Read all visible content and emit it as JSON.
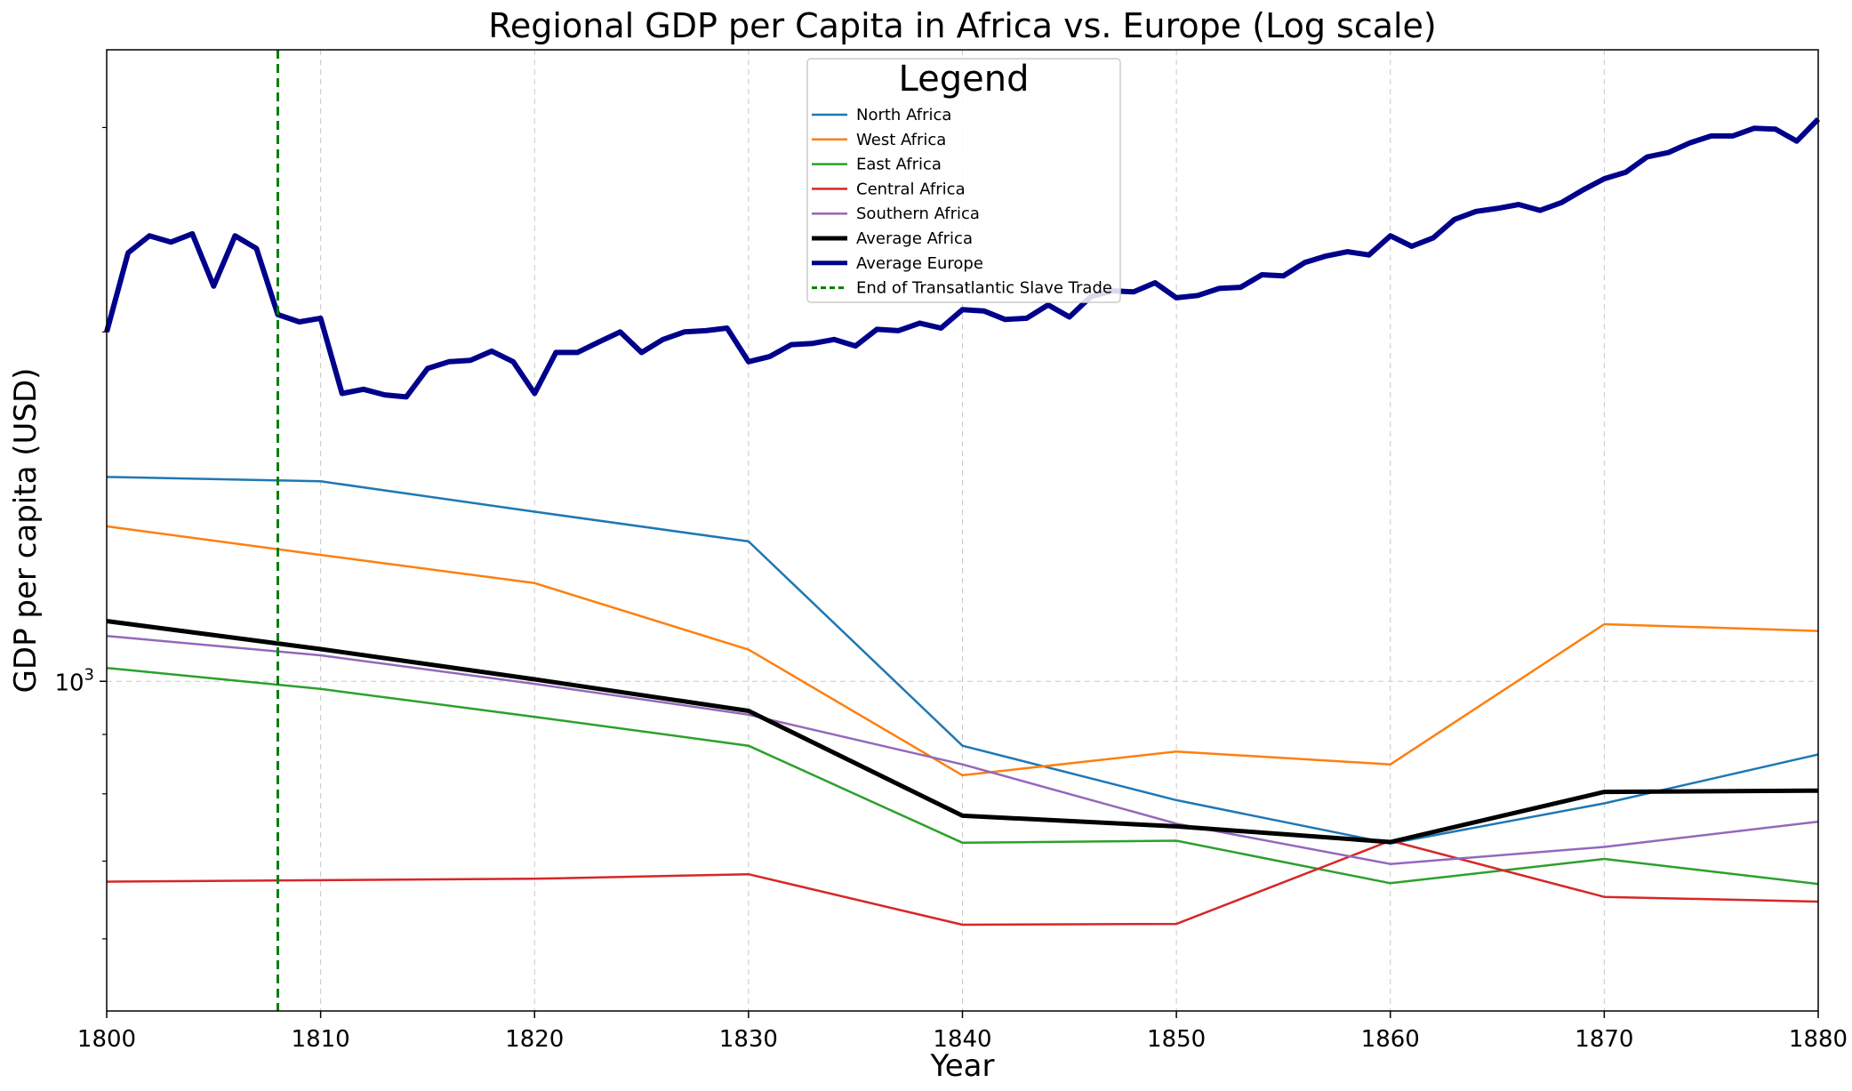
{
  "chart_data": {
    "type": "line",
    "title": "Regional GDP per Capita in Africa vs. Europe (Log scale)",
    "xlabel": "Year",
    "ylabel": "GDP per capita (USD)",
    "xlim": [
      1800,
      1880
    ],
    "ylim": [
      520,
      3500
    ],
    "yscale": "log",
    "x_ticks": [
      "1800",
      "1810",
      "1820",
      "1830",
      "1840",
      "1850",
      "1860",
      "1870",
      "1880"
    ],
    "y_tick_label": {
      "base": "10",
      "exponent": "3",
      "value": 1000
    },
    "grid": true,
    "legend": {
      "title": "Legend",
      "placement": "upper-center"
    },
    "series": [
      {
        "name": "North Africa",
        "color": "#1f77b4",
        "width": 2.5,
        "dash": false,
        "points": [
          [
            1800,
            1500
          ],
          [
            1810,
            1487
          ],
          [
            1820,
            1400
          ],
          [
            1830,
            1320
          ],
          [
            1840,
            880
          ],
          [
            1850,
            790
          ],
          [
            1860,
            725
          ],
          [
            1870,
            785
          ],
          [
            1880,
            865
          ]
        ]
      },
      {
        "name": "West Africa",
        "color": "#ff7f0e",
        "width": 2.5,
        "dash": false,
        "points": [
          [
            1800,
            1360
          ],
          [
            1810,
            1285
          ],
          [
            1820,
            1215
          ],
          [
            1830,
            1065
          ],
          [
            1840,
            830
          ],
          [
            1850,
            870
          ],
          [
            1860,
            848
          ],
          [
            1870,
            1120
          ],
          [
            1880,
            1105
          ]
        ]
      },
      {
        "name": "East Africa",
        "color": "#2ca02c",
        "width": 2.5,
        "dash": false,
        "points": [
          [
            1800,
            1027
          ],
          [
            1810,
            985
          ],
          [
            1820,
            932
          ],
          [
            1830,
            880
          ],
          [
            1840,
            726
          ],
          [
            1850,
            729
          ],
          [
            1860,
            670
          ],
          [
            1870,
            703
          ],
          [
            1880,
            669
          ]
        ]
      },
      {
        "name": "Central Africa",
        "color": "#d62728",
        "width": 2.5,
        "dash": false,
        "points": [
          [
            1800,
            672
          ],
          [
            1810,
            674
          ],
          [
            1820,
            676
          ],
          [
            1830,
            682
          ],
          [
            1840,
            617
          ],
          [
            1850,
            618
          ],
          [
            1860,
            729
          ],
          [
            1870,
            652
          ],
          [
            1880,
            646
          ]
        ]
      },
      {
        "name": "Southern Africa",
        "color": "#9467bd",
        "width": 2.5,
        "dash": false,
        "points": [
          [
            1800,
            1094
          ],
          [
            1810,
            1053
          ],
          [
            1820,
            995
          ],
          [
            1830,
            936
          ],
          [
            1840,
            848
          ],
          [
            1850,
            754
          ],
          [
            1860,
            696
          ],
          [
            1870,
            720
          ],
          [
            1880,
            757
          ]
        ]
      },
      {
        "name": "Average Africa",
        "color": "#000000",
        "width": 5,
        "dash": false,
        "points": [
          [
            1800,
            1127
          ],
          [
            1810,
            1066
          ],
          [
            1820,
            1004
          ],
          [
            1830,
            943
          ],
          [
            1840,
            766
          ],
          [
            1850,
            750
          ],
          [
            1860,
            727
          ],
          [
            1870,
            803
          ],
          [
            1880,
            805
          ]
        ]
      },
      {
        "name": "Average Europe",
        "color": "#00008b",
        "width": 6,
        "dash": false,
        "points": [
          [
            1800,
            2000
          ],
          [
            1801,
            2340
          ],
          [
            1802,
            2420
          ],
          [
            1803,
            2390
          ],
          [
            1804,
            2430
          ],
          [
            1805,
            2190
          ],
          [
            1806,
            2420
          ],
          [
            1807,
            2360
          ],
          [
            1808,
            2070
          ],
          [
            1809,
            2040
          ],
          [
            1810,
            2055
          ],
          [
            1811,
            1770
          ],
          [
            1812,
            1785
          ],
          [
            1813,
            1765
          ],
          [
            1814,
            1758
          ],
          [
            1815,
            1860
          ],
          [
            1816,
            1885
          ],
          [
            1817,
            1890
          ],
          [
            1818,
            1925
          ],
          [
            1819,
            1885
          ],
          [
            1820,
            1770
          ],
          [
            1821,
            1920
          ],
          [
            1822,
            1920
          ],
          [
            1823,
            1960
          ],
          [
            1824,
            2000
          ],
          [
            1825,
            1920
          ],
          [
            1826,
            1970
          ],
          [
            1827,
            2000
          ],
          [
            1828,
            2005
          ],
          [
            1829,
            2015
          ],
          [
            1830,
            1885
          ],
          [
            1831,
            1905
          ],
          [
            1832,
            1950
          ],
          [
            1833,
            1955
          ],
          [
            1834,
            1970
          ],
          [
            1835,
            1945
          ],
          [
            1836,
            2010
          ],
          [
            1837,
            2005
          ],
          [
            1838,
            2035
          ],
          [
            1839,
            2015
          ],
          [
            1840,
            2090
          ],
          [
            1841,
            2085
          ],
          [
            1842,
            2050
          ],
          [
            1843,
            2055
          ],
          [
            1844,
            2110
          ],
          [
            1845,
            2060
          ],
          [
            1846,
            2145
          ],
          [
            1847,
            2170
          ],
          [
            1848,
            2165
          ],
          [
            1849,
            2205
          ],
          [
            1850,
            2140
          ],
          [
            1851,
            2150
          ],
          [
            1852,
            2180
          ],
          [
            1853,
            2185
          ],
          [
            1854,
            2240
          ],
          [
            1855,
            2235
          ],
          [
            1856,
            2295
          ],
          [
            1857,
            2325
          ],
          [
            1858,
            2345
          ],
          [
            1859,
            2330
          ],
          [
            1860,
            2420
          ],
          [
            1861,
            2370
          ],
          [
            1862,
            2410
          ],
          [
            1863,
            2500
          ],
          [
            1864,
            2540
          ],
          [
            1865,
            2555
          ],
          [
            1866,
            2575
          ],
          [
            1867,
            2545
          ],
          [
            1868,
            2585
          ],
          [
            1869,
            2650
          ],
          [
            1870,
            2710
          ],
          [
            1871,
            2745
          ],
          [
            1872,
            2830
          ],
          [
            1873,
            2855
          ],
          [
            1874,
            2910
          ],
          [
            1875,
            2950
          ],
          [
            1876,
            2950
          ],
          [
            1877,
            2995
          ],
          [
            1878,
            2990
          ],
          [
            1879,
            2920
          ],
          [
            1880,
            3050
          ]
        ]
      },
      {
        "name": "End of Transatlantic Slave Trade",
        "color": "#008000",
        "width": 3,
        "dash": true,
        "vline_x": 1808
      }
    ]
  }
}
